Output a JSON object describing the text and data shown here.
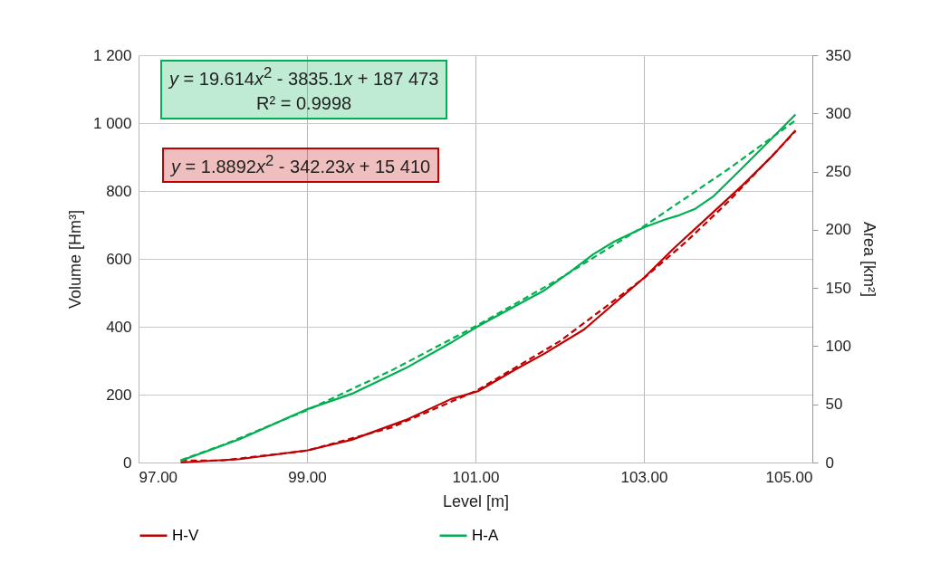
{
  "chart_data": {
    "type": "line",
    "xlabel": "Level [m]",
    "ylabel": "Volume [Hm³]",
    "y2label": "Area [km²]",
    "xlim": [
      97,
      105
    ],
    "xticks": [
      {
        "value": 97,
        "label": "97.00"
      },
      {
        "value": 99,
        "label": "99.00"
      },
      {
        "value": 101,
        "label": "101.00"
      },
      {
        "value": 103,
        "label": "103.00"
      },
      {
        "value": 105,
        "label": "105.00"
      }
    ],
    "ylim": [
      0,
      1200
    ],
    "yticks": [
      0,
      200,
      400,
      600,
      800,
      {
        "value": 1000,
        "label": "1 000"
      },
      {
        "value": 1200,
        "label": "1 200"
      }
    ],
    "y2lim": [
      0,
      350
    ],
    "y2ticks": [
      0,
      50,
      100,
      150,
      200,
      250,
      300,
      350
    ],
    "grid": true,
    "legend": "bottom",
    "marker": "none",
    "annotations": [
      "y = 19.614x$^{2}$ - 3835.1x + 187 473",
      "R² = 0.9998",
      "y = 1.8892x$^{2}$ - 342.23x + 15 410"
    ],
    "series": [
      {
        "name": "H-V",
        "color": "#c00000",
        "axis": "y",
        "line_style": "solid",
        "x": [
          97.5,
          98.2,
          99.01,
          99.53,
          100.17,
          100.71,
          101.03,
          101.46,
          101.82,
          102.29,
          103.0,
          103.36,
          103.83,
          104.18,
          104.54,
          104.8
        ],
        "values": [
          0,
          10,
          36,
          67,
          125,
          187,
          210,
          272,
          321,
          392,
          544,
          632,
          739,
          819,
          907,
          979
        ]
      },
      {
        "name": "H-A",
        "color": "#00b050",
        "axis": "y2",
        "line_style": "solid",
        "x": [
          97.5,
          98.2,
          99.01,
          99.53,
          100.17,
          100.71,
          101.03,
          101.46,
          101.82,
          102.11,
          102.4,
          102.65,
          103.0,
          103.26,
          103.4,
          103.61,
          103.83,
          104.18,
          104.47,
          104.8
        ],
        "values": [
          1.5,
          20,
          46,
          59,
          81,
          103,
          117,
          134,
          148,
          163,
          179,
          190,
          202,
          209,
          212,
          218,
          229,
          254,
          275,
          299
        ]
      },
      {
        "type": "line",
        "color": "#c00000",
        "axis": "y",
        "line_style": "dashed",
        "x": [
          97.5,
          98,
          99,
          100,
          101,
          102,
          103,
          103.5,
          104,
          104.8
        ],
        "values": [
          6,
          6,
          35,
          103,
          210,
          357,
          543,
          650,
          768,
          976
        ]
      },
      {
        "type": "line",
        "color": "#00b050",
        "axis": "y2",
        "line_style": "dashed",
        "x": [
          97.5,
          98,
          99,
          100,
          101,
          102,
          103,
          104,
          104.8
        ],
        "values": [
          2,
          15,
          45,
          79,
          117,
          158,
          203,
          252,
          294
        ]
      }
    ]
  }
}
